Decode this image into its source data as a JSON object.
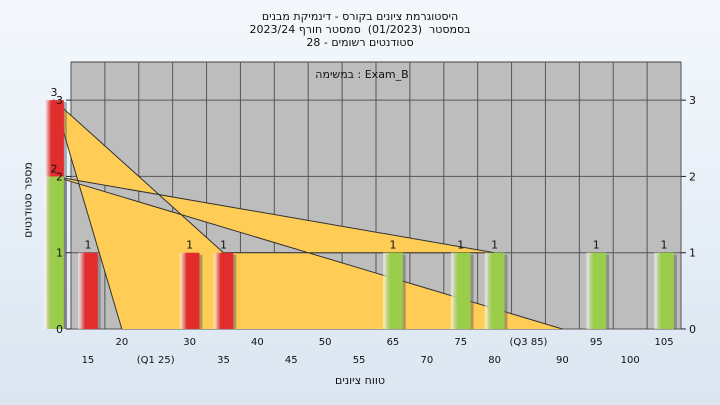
{
  "header": {
    "line1": "היסטוגרמת ציונים בקורס - דינמיקת מבנים",
    "line2": "בסמסטר  (01/2023)  סמסטר חורף 2023/24",
    "line3": "סטודנטים רשומים - 28"
  },
  "annotation": "במשימה : Exam_B",
  "chart_data": {
    "type": "bar",
    "xlabel": "טווח ציונים",
    "ylabel": "מספר סטודנטים",
    "ylim": [
      0,
      3.5
    ],
    "yticks": [
      0,
      1,
      2,
      3
    ],
    "x_ticks": [
      "15",
      "20",
      "(Q1 25)",
      "30",
      "35",
      "40",
      "45",
      "50",
      "55",
      "65",
      "70",
      "75",
      "80",
      "(Q3 85)",
      "90",
      "95",
      "100",
      "105"
    ],
    "bars": [
      {
        "x": "15",
        "value": 1,
        "label": "1",
        "color": "#e22d2d"
      },
      {
        "x": "25",
        "value": 3,
        "label": "3",
        "color": "#e22d2d"
      },
      {
        "x": "30",
        "value": 1,
        "label": "1",
        "color": "#e22d2d"
      },
      {
        "x": "35",
        "value": 1,
        "label": "1",
        "color": "#e22d2d"
      },
      {
        "x": "65",
        "value": 1,
        "label": "1",
        "color": "#9acd4a"
      },
      {
        "x": "75",
        "value": 1,
        "label": "1",
        "color": "#9acd4a"
      },
      {
        "x": "80",
        "value": 1,
        "label": "1",
        "color": "#9acd4a"
      },
      {
        "x": "85",
        "value": 2,
        "label": "2",
        "color": "#9acd4a"
      },
      {
        "x": "95",
        "value": 1,
        "label": "1",
        "color": "#9acd4a"
      },
      {
        "x": "105",
        "value": 1,
        "label": "1",
        "color": "#9acd4a"
      }
    ],
    "area_series": [
      {
        "x": "20",
        "value": 0
      },
      {
        "x": "25",
        "value": 3
      },
      {
        "x": "35",
        "value": 1
      },
      {
        "x": "75",
        "value": 1
      },
      {
        "x": "80",
        "value": 1
      },
      {
        "x": "85",
        "value": 2
      },
      {
        "x": "90",
        "value": 0
      }
    ],
    "area_color": "#ffcc55",
    "plot_background": "#bdbdbd",
    "grid": true
  }
}
